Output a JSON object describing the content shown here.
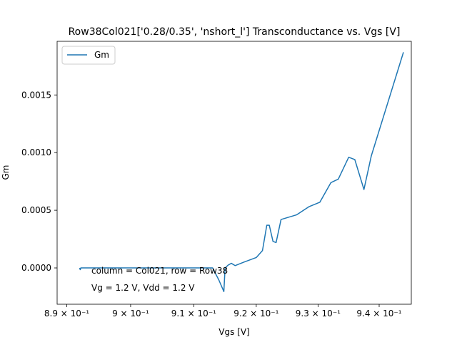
{
  "chart_data": {
    "type": "line",
    "title": "Row38Col021['0.28/0.35', 'nshort_l'] Transconductance vs. Vgs [V]",
    "xlabel": "Vgs [V]",
    "ylabel": "Gm",
    "xlim": [
      0.8885,
      0.9453
    ],
    "ylim": [
      -0.000315,
      0.001965
    ],
    "x_scale": "log",
    "grid": false,
    "legend_position": "upper left",
    "x_ticks": [
      {
        "value": 0.89,
        "label": "8.9 × 10⁻¹"
      },
      {
        "value": 0.9,
        "label": "9 × 10⁻¹"
      },
      {
        "value": 0.91,
        "label": "9.1 × 10⁻¹"
      },
      {
        "value": 0.92,
        "label": "9.2 × 10⁻¹"
      },
      {
        "value": 0.93,
        "label": "9.3 × 10⁻¹"
      },
      {
        "value": 0.94,
        "label": "9.4 × 10⁻¹"
      }
    ],
    "y_ticks": [
      {
        "value": 0.0,
        "label": "0.0000"
      },
      {
        "value": 0.0005,
        "label": "0.0005"
      },
      {
        "value": 0.001,
        "label": "0.0010"
      },
      {
        "value": 0.0015,
        "label": "0.0015"
      }
    ],
    "series": [
      {
        "name": "Gm",
        "color": "#1f77b4",
        "x": [
          0.892,
          0.8921,
          0.8922,
          0.893,
          0.899,
          0.905,
          0.91,
          0.913,
          0.914,
          0.9148,
          0.915,
          0.9155,
          0.916,
          0.9166,
          0.918,
          0.92,
          0.921,
          0.9217,
          0.9221,
          0.9227,
          0.9232,
          0.924,
          0.9265,
          0.9285,
          0.9303,
          0.9321,
          0.9333,
          0.935,
          0.936,
          0.9375,
          0.9387,
          0.944
        ],
        "y": [
          0.0,
          -1.5e-05,
          0.0,
          0.0,
          0.0,
          0.0,
          0.0,
          0.0,
          -0.000105,
          -0.000205,
          0.0,
          2.5e-05,
          4e-05,
          2e-05,
          5e-05,
          9e-05,
          0.00015,
          0.00037,
          0.00037,
          0.00023,
          0.00022,
          0.00042,
          0.00046,
          0.00053,
          0.00057,
          0.00074,
          0.00077,
          0.00096,
          0.00094,
          0.00068,
          0.00097,
          0.00187
        ]
      }
    ],
    "annotations": [
      "column = Col021, row = Row38",
      "Vg = 1.2 V, Vdd = 1.2 V"
    ]
  }
}
